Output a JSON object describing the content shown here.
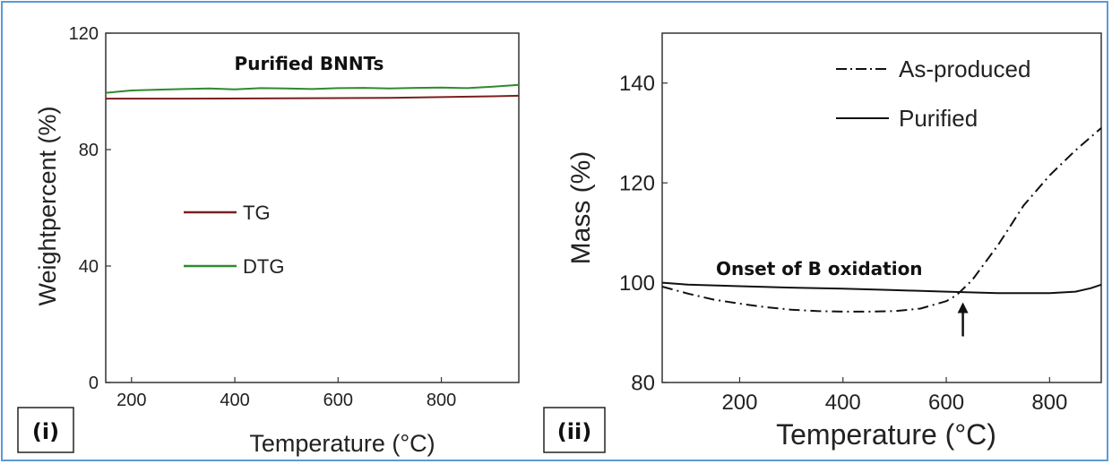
{
  "chart_data": [
    {
      "panel_label": "(i)",
      "type": "line",
      "title": "Purified BNNTs",
      "xlabel": "Temperature (°C)",
      "ylabel": "Weightpercent (%)",
      "xlim": [
        150,
        950
      ],
      "ylim": [
        0,
        120
      ],
      "x_ticks": [
        200,
        400,
        600,
        800
      ],
      "y_ticks": [
        0,
        40,
        80,
        120
      ],
      "legend_position": "center-left",
      "series": [
        {
          "name": "TG",
          "color": "#7a1f1f",
          "style": "solid",
          "x": [
            150,
            300,
            500,
            700,
            900,
            950
          ],
          "y": [
            97.5,
            97.5,
            97.6,
            97.8,
            98.3,
            98.5
          ]
        },
        {
          "name": "DTG",
          "color": "#2e8b2e",
          "style": "solid",
          "x": [
            150,
            200,
            250,
            300,
            350,
            400,
            450,
            500,
            550,
            600,
            650,
            700,
            750,
            800,
            850,
            900,
            950
          ],
          "y": [
            99.5,
            100.3,
            100.6,
            100.8,
            101.0,
            100.7,
            101.1,
            101.0,
            100.8,
            101.1,
            101.2,
            101.0,
            101.2,
            101.3,
            101.1,
            101.6,
            102.2
          ]
        }
      ]
    },
    {
      "panel_label": "(ii)",
      "type": "line",
      "xlabel": "Temperature (°C)",
      "ylabel": "Mass (%)",
      "xlim": [
        50,
        900
      ],
      "ylim": [
        80,
        150
      ],
      "x_ticks": [
        200,
        400,
        600,
        800
      ],
      "y_ticks": [
        80,
        100,
        120,
        140
      ],
      "legend_position": "top-right",
      "annotation": {
        "text": "Onset of B oxidation",
        "arrow_x": 620,
        "arrow_y": 97.5
      },
      "series": [
        {
          "name": "As-produced",
          "color": "#111111",
          "style": "dashdot",
          "x": [
            50,
            100,
            150,
            200,
            250,
            300,
            350,
            400,
            450,
            500,
            550,
            600,
            620,
            650,
            700,
            750,
            800,
            850,
            900
          ],
          "y": [
            99.2,
            97.8,
            96.6,
            95.8,
            95.1,
            94.6,
            94.3,
            94.2,
            94.2,
            94.3,
            94.8,
            96.3,
            97.5,
            100.5,
            107.5,
            115.5,
            121.5,
            126.5,
            131.0
          ]
        },
        {
          "name": "Purified",
          "color": "#111111",
          "style": "solid",
          "x": [
            50,
            100,
            200,
            300,
            400,
            500,
            600,
            700,
            800,
            850,
            880,
            900
          ],
          "y": [
            100.0,
            99.6,
            99.3,
            99.0,
            98.8,
            98.5,
            98.2,
            97.9,
            97.9,
            98.2,
            98.9,
            99.6
          ]
        }
      ]
    }
  ]
}
